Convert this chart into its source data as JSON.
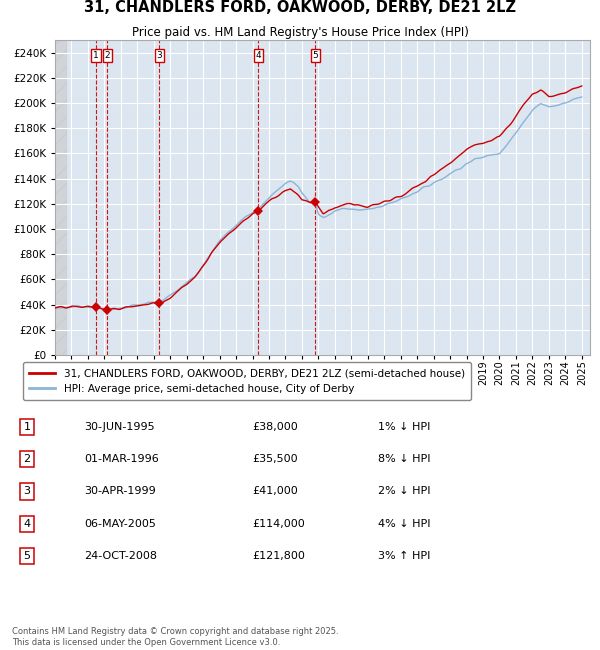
{
  "title_line1": "31, CHANDLERS FORD, OAKWOOD, DERBY, DE21 2LZ",
  "title_line2": "Price paid vs. HM Land Registry's House Price Index (HPI)",
  "bg_color": "#dce6f1",
  "plot_bg_color": "#dce6f1",
  "legend_entry1": "31, CHANDLERS FORD, OAKWOOD, DERBY, DE21 2LZ (semi-detached house)",
  "legend_entry2": "HPI: Average price, semi-detached house, City of Derby",
  "sales": [
    {
      "num": 1,
      "date_x": 1995.5,
      "price": 38000,
      "label": "30-JUN-1995",
      "price_str": "£38,000",
      "pct": "1%",
      "dir": "↓"
    },
    {
      "num": 2,
      "date_x": 1996.17,
      "price": 35500,
      "label": "01-MAR-1996",
      "price_str": "£35,500",
      "pct": "8%",
      "dir": "↓"
    },
    {
      "num": 3,
      "date_x": 1999.33,
      "price": 41000,
      "label": "30-APR-1999",
      "price_str": "£41,000",
      "pct": "2%",
      "dir": "↓"
    },
    {
      "num": 4,
      "date_x": 2005.35,
      "price": 114000,
      "label": "06-MAY-2005",
      "price_str": "£114,000",
      "pct": "4%",
      "dir": "↓"
    },
    {
      "num": 5,
      "date_x": 2008.82,
      "price": 121800,
      "label": "24-OCT-2008",
      "price_str": "£121,800",
      "pct": "3%",
      "dir": "↑"
    }
  ],
  "ylim": [
    0,
    250000
  ],
  "xlim_start": 1993.0,
  "xlim_end": 2025.5,
  "footer": "Contains HM Land Registry data © Crown copyright and database right 2025.\nThis data is licensed under the Open Government Licence v3.0.",
  "hpi_color": "#8ab4d8",
  "price_color": "#cc0000",
  "marker_color": "#cc0000",
  "vline_color": "#cc0000",
  "grid_color": "#ffffff",
  "border_color": "#aaaaaa",
  "hpi_anchors": [
    [
      1993.0,
      37500
    ],
    [
      1993.5,
      37800
    ],
    [
      1994.0,
      38200
    ],
    [
      1994.5,
      38800
    ],
    [
      1995.0,
      38500
    ],
    [
      1995.5,
      38000
    ],
    [
      1996.0,
      36500
    ],
    [
      1996.17,
      36000
    ],
    [
      1996.5,
      36200
    ],
    [
      1997.0,
      37500
    ],
    [
      1997.5,
      38500
    ],
    [
      1998.0,
      39500
    ],
    [
      1998.5,
      40500
    ],
    [
      1999.0,
      41500
    ],
    [
      1999.33,
      42000
    ],
    [
      1999.5,
      43000
    ],
    [
      2000.0,
      47000
    ],
    [
      2000.5,
      52000
    ],
    [
      2001.0,
      57000
    ],
    [
      2001.5,
      63000
    ],
    [
      2002.0,
      72000
    ],
    [
      2002.5,
      82000
    ],
    [
      2003.0,
      90000
    ],
    [
      2003.5,
      97000
    ],
    [
      2004.0,
      103000
    ],
    [
      2004.5,
      109000
    ],
    [
      2005.0,
      113000
    ],
    [
      2005.35,
      116000
    ],
    [
      2005.5,
      118000
    ],
    [
      2006.0,
      125000
    ],
    [
      2006.5,
      131000
    ],
    [
      2007.0,
      136000
    ],
    [
      2007.3,
      138000
    ],
    [
      2007.5,
      137000
    ],
    [
      2007.8,
      133000
    ],
    [
      2008.0,
      128000
    ],
    [
      2008.5,
      121000
    ],
    [
      2008.82,
      121000
    ],
    [
      2009.0,
      112000
    ],
    [
      2009.3,
      109000
    ],
    [
      2009.5,
      110000
    ],
    [
      2009.8,
      112000
    ],
    [
      2010.0,
      114000
    ],
    [
      2010.5,
      116000
    ],
    [
      2011.0,
      117000
    ],
    [
      2011.5,
      115000
    ],
    [
      2012.0,
      115000
    ],
    [
      2012.5,
      117000
    ],
    [
      2013.0,
      119000
    ],
    [
      2013.5,
      121000
    ],
    [
      2014.0,
      124000
    ],
    [
      2014.5,
      127000
    ],
    [
      2015.0,
      130000
    ],
    [
      2015.5,
      133000
    ],
    [
      2016.0,
      137000
    ],
    [
      2016.5,
      140000
    ],
    [
      2017.0,
      144000
    ],
    [
      2017.5,
      148000
    ],
    [
      2018.0,
      152000
    ],
    [
      2018.5,
      155000
    ],
    [
      2019.0,
      157000
    ],
    [
      2019.5,
      159000
    ],
    [
      2020.0,
      161000
    ],
    [
      2020.5,
      168000
    ],
    [
      2021.0,
      176000
    ],
    [
      2021.5,
      185000
    ],
    [
      2022.0,
      195000
    ],
    [
      2022.5,
      200000
    ],
    [
      2023.0,
      197000
    ],
    [
      2023.5,
      198000
    ],
    [
      2024.0,
      200000
    ],
    [
      2024.5,
      203000
    ],
    [
      2025.0,
      205000
    ]
  ],
  "price_anchors": [
    [
      1993.0,
      37000
    ],
    [
      1993.5,
      37300
    ],
    [
      1994.0,
      37800
    ],
    [
      1994.5,
      38200
    ],
    [
      1995.0,
      38500
    ],
    [
      1995.5,
      38000
    ],
    [
      1996.0,
      35800
    ],
    [
      1996.17,
      35500
    ],
    [
      1996.5,
      36000
    ],
    [
      1997.0,
      37200
    ],
    [
      1997.5,
      38200
    ],
    [
      1998.0,
      39200
    ],
    [
      1998.5,
      40200
    ],
    [
      1999.0,
      40800
    ],
    [
      1999.33,
      41000
    ],
    [
      1999.5,
      42500
    ],
    [
      2000.0,
      46000
    ],
    [
      2000.5,
      51000
    ],
    [
      2001.0,
      56500
    ],
    [
      2001.5,
      62500
    ],
    [
      2002.0,
      71000
    ],
    [
      2002.5,
      81000
    ],
    [
      2003.0,
      89000
    ],
    [
      2003.5,
      96000
    ],
    [
      2004.0,
      101000
    ],
    [
      2004.5,
      107000
    ],
    [
      2005.0,
      112000
    ],
    [
      2005.35,
      114000
    ],
    [
      2005.5,
      116000
    ],
    [
      2006.0,
      122000
    ],
    [
      2006.5,
      127000
    ],
    [
      2007.0,
      131000
    ],
    [
      2007.3,
      132500
    ],
    [
      2007.5,
      130000
    ],
    [
      2007.8,
      127000
    ],
    [
      2008.0,
      124000
    ],
    [
      2008.5,
      121500
    ],
    [
      2008.82,
      121800
    ],
    [
      2009.0,
      118000
    ],
    [
      2009.3,
      112000
    ],
    [
      2009.5,
      113000
    ],
    [
      2009.8,
      115000
    ],
    [
      2010.0,
      117000
    ],
    [
      2010.5,
      119000
    ],
    [
      2011.0,
      120000
    ],
    [
      2011.5,
      118000
    ],
    [
      2012.0,
      117000
    ],
    [
      2012.5,
      119000
    ],
    [
      2013.0,
      121000
    ],
    [
      2013.5,
      123000
    ],
    [
      2014.0,
      126000
    ],
    [
      2014.5,
      130000
    ],
    [
      2015.0,
      134000
    ],
    [
      2015.5,
      138000
    ],
    [
      2016.0,
      143000
    ],
    [
      2016.5,
      148000
    ],
    [
      2017.0,
      153000
    ],
    [
      2017.5,
      158000
    ],
    [
      2018.0,
      163000
    ],
    [
      2018.5,
      166000
    ],
    [
      2019.0,
      168000
    ],
    [
      2019.5,
      170000
    ],
    [
      2020.0,
      173000
    ],
    [
      2020.5,
      181000
    ],
    [
      2021.0,
      190000
    ],
    [
      2021.5,
      200000
    ],
    [
      2022.0,
      208000
    ],
    [
      2022.5,
      210000
    ],
    [
      2023.0,
      205000
    ],
    [
      2023.5,
      206000
    ],
    [
      2024.0,
      208000
    ],
    [
      2024.5,
      212000
    ],
    [
      2025.0,
      215000
    ]
  ]
}
